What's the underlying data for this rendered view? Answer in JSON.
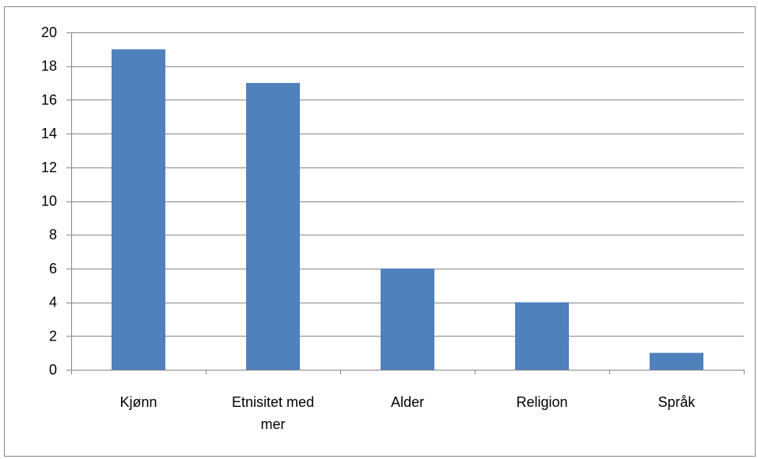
{
  "chart_data": {
    "type": "bar",
    "title": "",
    "xlabel": "",
    "ylabel": "",
    "categories": [
      "Kjønn",
      "Etnisitet med mer",
      "Alder",
      "Religion",
      "Språk"
    ],
    "values": [
      19,
      17,
      6,
      4,
      1
    ],
    "ylim": [
      0,
      20
    ],
    "yticks": [
      0,
      2,
      4,
      6,
      8,
      10,
      12,
      14,
      16,
      18,
      20
    ],
    "grid": true,
    "legend": "none",
    "colors": {
      "bar": "#4F81BD",
      "grid": "#868686",
      "axis": "#868686",
      "frame": "#868686"
    }
  }
}
